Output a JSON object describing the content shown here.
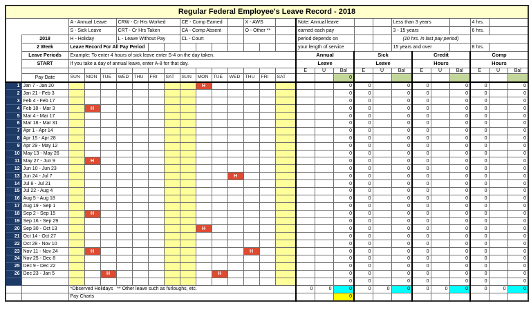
{
  "title": "Regular Federal Employee's Leave Record - 2018",
  "colors": {
    "banner_bg": "#FFFFCC",
    "weekend_bg": "#FFFF99",
    "row_number_bg": "#1E3A66",
    "holiday_bg": "#DD4B32",
    "start_balance_bg": "#C4D79B",
    "totals_balance_bg": "#00FFFF",
    "pay_charts_balance_bg": "#FFFF00"
  },
  "legend": {
    "rows": [
      {
        "c1": "A - Annual Leave",
        "c2": "CRW - Cr Hrs Worked",
        "c3": "CE - Comp Earned",
        "c4": "X - AWS"
      },
      {
        "c1": "S - Sick Leave",
        "c2": "CRT - Cr Hrs Taken",
        "c3": "CA - Comp Absent",
        "c4": "O - Other **"
      },
      {
        "c1": "H - Holiday",
        "c2": "L  - Leave Without Pay",
        "c3": "CL - Court",
        "c4": ""
      }
    ]
  },
  "side_labels": {
    "year": "2018",
    "week": "2 Week",
    "periods": "Leave Periods",
    "start": "START"
  },
  "instructions": {
    "bold_line": "Leave Record For All Pay Period",
    "example_line": "Example: To enter 4 hours of sick leave enter S-4 on the day taken.",
    "annual_line": "If you take a day of annual leave, enter A-8 for that day."
  },
  "note": {
    "lines": [
      "Note:  Annual leave",
      "earned each pay",
      "period depends on",
      "your length of service"
    ],
    "service": [
      "Less than 3 years",
      "3 - 15 years",
      "(10 hrs. in last pay period)",
      "15 years and over"
    ],
    "hours": [
      "4 hrs.",
      "6 hrs.",
      "8 hrs."
    ]
  },
  "groups": [
    {
      "l1": "Annual",
      "l2": "Leave"
    },
    {
      "l1": "Sick",
      "l2": "Leave"
    },
    {
      "l1": "Credit",
      "l2": "Hours"
    },
    {
      "l1": "Comp",
      "l2": "Hours"
    }
  ],
  "eub": [
    "E",
    "U",
    "Bal"
  ],
  "pay_date_header": "Pay Date",
  "day_names": [
    "SUN",
    "MON",
    "TUE",
    "WED",
    "THU",
    "FRI",
    "SAT",
    "SUN",
    "MON",
    "TUE",
    "WED",
    "THU",
    "FRI",
    "SAT"
  ],
  "start_balances": {
    "annual_bal": "0",
    "sick_bal": "",
    "credit_bal": "",
    "comp_bal": ""
  },
  "holiday_marker": "H",
  "leave_defaults": [
    "",
    "",
    "0",
    "0",
    "",
    "0",
    "0",
    "",
    "0",
    "0",
    "",
    "0"
  ],
  "period_rows": [
    {
      "num": "1",
      "label": "Jan 7 - Jan 20",
      "holidays": [
        8
      ]
    },
    {
      "num": "2",
      "label": "Jan 21 - Feb 3",
      "holidays": []
    },
    {
      "num": "3",
      "label": "Feb 4 - Feb 17",
      "holidays": []
    },
    {
      "num": "4",
      "label": "Feb 18 - Mar 3",
      "holidays": [
        1
      ]
    },
    {
      "num": "5",
      "label": "Mar 4 - Mar 17",
      "holidays": []
    },
    {
      "num": "6",
      "label": "Mar 18 - Mar 31",
      "holidays": []
    },
    {
      "num": "7",
      "label": "Apr 1 - Apr  14",
      "holidays": []
    },
    {
      "num": "8",
      "label": "Apr  15 - Apr 28",
      "holidays": []
    },
    {
      "num": "9",
      "label": "Apr 29 - May 12",
      "holidays": []
    },
    {
      "num": "10",
      "label": "May 13 - May 26",
      "holidays": []
    },
    {
      "num": "11",
      "label": "May 27 - Jun 9",
      "holidays": [
        1
      ]
    },
    {
      "num": "12",
      "label": "Jun 10 - Jun 23",
      "holidays": []
    },
    {
      "num": "13",
      "label": "Jun 24 - Jul 7",
      "holidays": [
        10
      ]
    },
    {
      "num": "14",
      "label": "Jul 8 - Jul 21",
      "holidays": []
    },
    {
      "num": "15",
      "label": "Jul 22 - Aug 4",
      "holidays": []
    },
    {
      "num": "16",
      "label": "Aug 5 - Aug 18",
      "holidays": []
    },
    {
      "num": "17",
      "label": "Aug 19 - Sep 1",
      "holidays": []
    },
    {
      "num": "18",
      "label": "Sep 2 - Sep  15",
      "holidays": [
        1
      ]
    },
    {
      "num": "19",
      "label": "Sep  16 - Sep 29",
      "holidays": []
    },
    {
      "num": "20",
      "label": "Sep 30 - Oct  13",
      "holidays": [
        8
      ]
    },
    {
      "num": "21",
      "label": "Oct  14 - Oct 27",
      "holidays": []
    },
    {
      "num": "22",
      "label": "Oct 28 - Nov  10",
      "holidays": []
    },
    {
      "num": "23",
      "label": "Nov  11 - Nov 24",
      "holidays": [
        1,
        11
      ]
    },
    {
      "num": "24",
      "label": "Nov 25 - Dec  8",
      "holidays": []
    },
    {
      "num": "25",
      "label": "Dec  9 - Dec 22",
      "holidays": []
    },
    {
      "num": "26",
      "label": "Dec 23 - Jan 5",
      "holidays": [
        2,
        9
      ]
    },
    {
      "num": "",
      "label": "",
      "holidays": []
    }
  ],
  "footer": {
    "observed_note": "*Observed Holidays   ** Other leave such as furloughs, etc.",
    "totals_values": [
      "0",
      "0",
      "0",
      "0",
      "0",
      "0",
      "0",
      "0",
      "0",
      "0",
      "0",
      "0"
    ],
    "pay_charts_label": "Pay Charts",
    "pay_charts_annual_bal": "0"
  }
}
